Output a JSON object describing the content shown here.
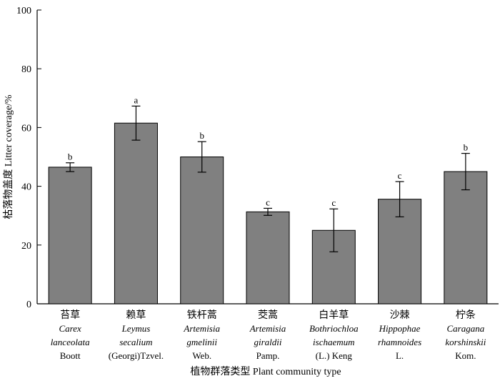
{
  "chart_data": {
    "type": "bar",
    "ylabel": "枯落物盖度 Litter coverage/%",
    "xlabel": "植物群落类型  Plant community type",
    "ylim": [
      0,
      100
    ],
    "yticks": [
      0,
      20,
      40,
      60,
      80,
      100
    ],
    "grid": false,
    "bar_color": "#808080",
    "categories": [
      {
        "zh": "苔草",
        "latin": [
          "Carex",
          "lanceolata"
        ],
        "author": "Boott",
        "value": 46.5,
        "error": 1.5,
        "sig": "b"
      },
      {
        "zh": "赖草",
        "latin": [
          "Leymus",
          "secalium"
        ],
        "author": "(Georgi)Tzvel.",
        "value": 61.5,
        "error": 5.8,
        "sig": "a"
      },
      {
        "zh": "铁杆蒿",
        "latin": [
          "Artemisia",
          "gmelinii"
        ],
        "author": "Web.",
        "value": 50.0,
        "error": 5.2,
        "sig": "b"
      },
      {
        "zh": "茭蒿",
        "latin": [
          "Artemisia",
          "giraldii"
        ],
        "author": "Pamp.",
        "value": 31.3,
        "error": 1.2,
        "sig": "c"
      },
      {
        "zh": "白羊草",
        "latin": [
          "Bothriochloa",
          "ischaemum"
        ],
        "author": "(L.) Keng",
        "value": 25.0,
        "error": 7.3,
        "sig": "c"
      },
      {
        "zh": "沙棘",
        "latin": [
          "Hippophae",
          "rhamnoides"
        ],
        "author": "L.",
        "value": 35.6,
        "error": 6.0,
        "sig": "c"
      },
      {
        "zh": "柠条",
        "latin": [
          "Caragana",
          "korshinskii"
        ],
        "author": "Kom.",
        "value": 45.0,
        "error": 6.2,
        "sig": "b"
      }
    ]
  }
}
